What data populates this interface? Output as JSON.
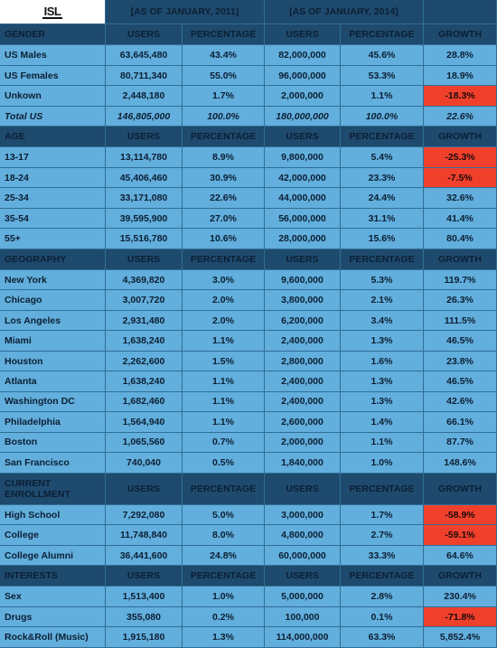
{
  "logo": {
    "text": "ISL"
  },
  "periods": {
    "p1": "[AS OF JANUARY, 2011]",
    "p2": "[AS OF JANUARY, 2014]"
  },
  "columns": {
    "users": "USERS",
    "percentage": "PERCENTAGE",
    "growth": "GROWTH"
  },
  "colors": {
    "header_bg": "#1e4a6e",
    "cell_bg": "#62aedc",
    "negative_bg": "#f0402c"
  },
  "sections": [
    {
      "title": "GENDER",
      "rows": [
        {
          "label": "US Males",
          "u2011": "63,645,480",
          "p2011": "43.4%",
          "u2014": "82,000,000",
          "p2014": "45.6%",
          "growth": "28.8%",
          "negative": false
        },
        {
          "label": "US Females",
          "u2011": "80,711,340",
          "p2011": "55.0%",
          "u2014": "96,000,000",
          "p2014": "53.3%",
          "growth": "18.9%",
          "negative": false
        },
        {
          "label": "Unkown",
          "u2011": "2,448,180",
          "p2011": "1.7%",
          "u2014": "2,000,000",
          "p2014": "1.1%",
          "growth": "-18.3%",
          "negative": true
        },
        {
          "label": "Total US",
          "u2011": "146,805,000",
          "p2011": "100.0%",
          "u2014": "180,000,000",
          "p2014": "100.0%",
          "growth": "22.6%",
          "negative": false,
          "total": true
        }
      ]
    },
    {
      "title": "AGE",
      "rows": [
        {
          "label": "13-17",
          "u2011": "13,114,780",
          "p2011": "8.9%",
          "u2014": "9,800,000",
          "p2014": "5.4%",
          "growth": "-25.3%",
          "negative": true
        },
        {
          "label": "18-24",
          "u2011": "45,406,460",
          "p2011": "30.9%",
          "u2014": "42,000,000",
          "p2014": "23.3%",
          "growth": "-7.5%",
          "negative": true
        },
        {
          "label": "25-34",
          "u2011": "33,171,080",
          "p2011": "22.6%",
          "u2014": "44,000,000",
          "p2014": "24.4%",
          "growth": "32.6%",
          "negative": false
        },
        {
          "label": "35-54",
          "u2011": "39,595,900",
          "p2011": "27.0%",
          "u2014": "56,000,000",
          "p2014": "31.1%",
          "growth": "41.4%",
          "negative": false
        },
        {
          "label": "55+",
          "u2011": "15,516,780",
          "p2011": "10.6%",
          "u2014": "28,000,000",
          "p2014": "15.6%",
          "growth": "80.4%",
          "negative": false
        }
      ]
    },
    {
      "title": "GEOGRAPHY",
      "rows": [
        {
          "label": "New York",
          "u2011": "4,369,820",
          "p2011": "3.0%",
          "u2014": "9,600,000",
          "p2014": "5.3%",
          "growth": "119.7%",
          "negative": false
        },
        {
          "label": "Chicago",
          "u2011": "3,007,720",
          "p2011": "2.0%",
          "u2014": "3,800,000",
          "p2014": "2.1%",
          "growth": "26.3%",
          "negative": false
        },
        {
          "label": "Los Angeles",
          "u2011": "2,931,480",
          "p2011": "2.0%",
          "u2014": "6,200,000",
          "p2014": "3.4%",
          "growth": "111.5%",
          "negative": false
        },
        {
          "label": "Miami",
          "u2011": "1,638,240",
          "p2011": "1.1%",
          "u2014": "2,400,000",
          "p2014": "1.3%",
          "growth": "46.5%",
          "negative": false
        },
        {
          "label": "Houston",
          "u2011": "2,262,600",
          "p2011": "1.5%",
          "u2014": "2,800,000",
          "p2014": "1.6%",
          "growth": "23.8%",
          "negative": false
        },
        {
          "label": "Atlanta",
          "u2011": "1,638,240",
          "p2011": "1.1%",
          "u2014": "2,400,000",
          "p2014": "1.3%",
          "growth": "46.5%",
          "negative": false
        },
        {
          "label": "Washington DC",
          "u2011": "1,682,460",
          "p2011": "1.1%",
          "u2014": "2,400,000",
          "p2014": "1.3%",
          "growth": "42.6%",
          "negative": false
        },
        {
          "label": "Philadelphia",
          "u2011": "1,564,940",
          "p2011": "1.1%",
          "u2014": "2,600,000",
          "p2014": "1.4%",
          "growth": "66.1%",
          "negative": false
        },
        {
          "label": "Boston",
          "u2011": "1,065,560",
          "p2011": "0.7%",
          "u2014": "2,000,000",
          "p2014": "1.1%",
          "growth": "87.7%",
          "negative": false
        },
        {
          "label": "San Francisco",
          "u2011": "740,040",
          "p2011": "0.5%",
          "u2014": "1,840,000",
          "p2014": "1.0%",
          "growth": "148.6%",
          "negative": false
        }
      ]
    },
    {
      "title_lines": [
        "CURRENT",
        "ENROLLMENT"
      ],
      "rows": [
        {
          "label": "High School",
          "u2011": "7,292,080",
          "p2011": "5.0%",
          "u2014": "3,000,000",
          "p2014": "1.7%",
          "growth": "-58.9%",
          "negative": true
        },
        {
          "label": "College",
          "u2011": "11,748,840",
          "p2011": "8.0%",
          "u2014": "4,800,000",
          "p2014": "2.7%",
          "growth": "-59.1%",
          "negative": true
        },
        {
          "label": "College Alumni",
          "u2011": "36,441,600",
          "p2011": "24.8%",
          "u2014": "60,000,000",
          "p2014": "33.3%",
          "growth": "64.6%",
          "negative": false
        }
      ]
    },
    {
      "title": "INTERESTS",
      "rows": [
        {
          "label": "Sex",
          "u2011": "1,513,400",
          "p2011": "1.0%",
          "u2014": "5,000,000",
          "p2014": "2.8%",
          "growth": "230.4%",
          "negative": false
        },
        {
          "label": "Drugs",
          "u2011": "355,080",
          "p2011": "0.2%",
          "u2014": "100,000",
          "p2014": "0.1%",
          "growth": "-71.8%",
          "negative": true
        },
        {
          "label": "Rock&Roll (Music)",
          "u2011": "1,915,180",
          "p2011": "1.3%",
          "u2014": "114,000,000",
          "p2014": "63.3%",
          "growth": "5,852.4%",
          "negative": false
        }
      ]
    }
  ]
}
